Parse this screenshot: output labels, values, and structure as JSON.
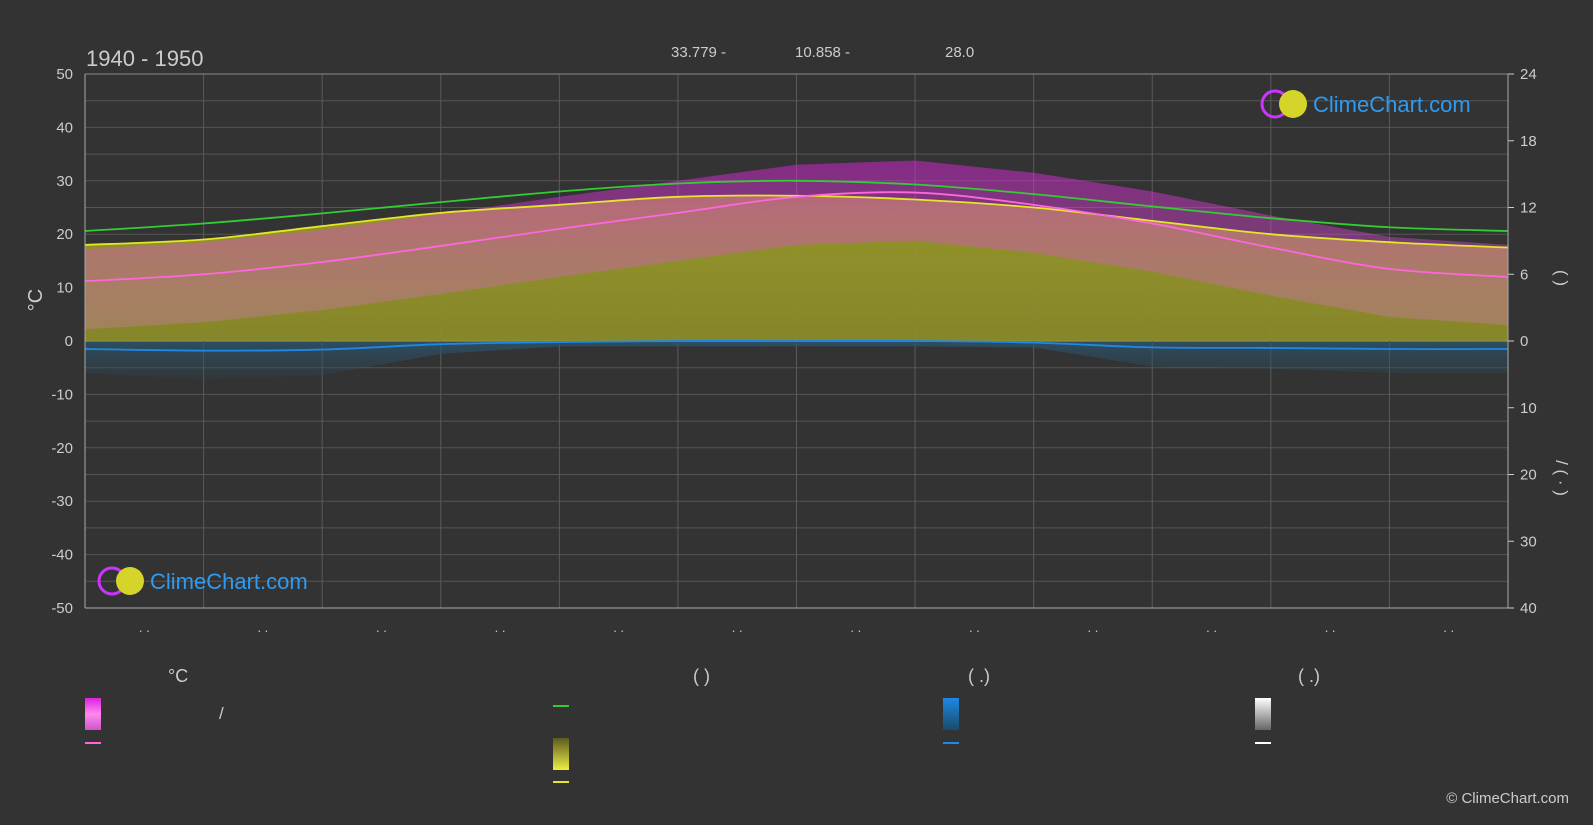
{
  "header": {
    "period": "1940 - 1950",
    "coord_lat": "33.779 -",
    "coord_lon": "10.858 -",
    "elevation": "28.0"
  },
  "brand": {
    "name": "ClimeChart.com",
    "copyright": "© ClimeChart.com"
  },
  "chart_data": {
    "type": "line",
    "x_tick_labels": [
      ". .",
      ". .",
      ". .",
      ". .",
      ". .",
      ". .",
      ". .",
      ". .",
      ". .",
      ". .",
      ". .",
      ". ."
    ],
    "left_axis": {
      "label": "°C",
      "ticks": [
        50,
        40,
        30,
        20,
        10,
        0,
        -10,
        -20,
        -30,
        -40,
        -50
      ],
      "range": [
        -50,
        50
      ]
    },
    "right_axis_top": {
      "label": "(   )",
      "ticks": [
        24,
        18,
        12,
        6,
        0
      ],
      "range": [
        0,
        24
      ]
    },
    "right_axis_bottom": {
      "label": "/ (  ·  )",
      "ticks": [
        0,
        10,
        20,
        30,
        40
      ],
      "range": [
        0,
        40
      ]
    },
    "grid": true,
    "x": [
      0,
      1,
      2,
      3,
      4,
      5,
      6,
      7,
      8,
      9,
      10,
      11,
      12
    ],
    "series": [
      {
        "key": "daylight",
        "color": "#33cc33",
        "values": [
          20.6,
          22.0,
          23.9,
          26.0,
          28.0,
          29.5,
          30.0,
          29.3,
          27.5,
          25.2,
          23.0,
          21.3,
          20.6
        ]
      },
      {
        "key": "sunshine",
        "color": "#e5e52b",
        "values": [
          18.0,
          19.0,
          21.5,
          24.0,
          25.5,
          27.0,
          27.2,
          26.5,
          25.0,
          22.5,
          20.0,
          18.5,
          17.5
        ]
      },
      {
        "key": "mean_temp",
        "color": "#ff66dd",
        "values": [
          11.2,
          12.5,
          14.8,
          17.8,
          21.0,
          24.0,
          27.0,
          27.8,
          25.5,
          22.0,
          17.5,
          13.5,
          12.0
        ]
      },
      {
        "key": "rain",
        "color": "#1e88e5",
        "values": [
          -1.5,
          -1.8,
          -1.6,
          -0.6,
          -0.2,
          0,
          0,
          0,
          -0.3,
          -1.2,
          -1.3,
          -1.5,
          -1.5
        ]
      }
    ]
  },
  "legend": {
    "col1": {
      "head": "°C",
      "items": [
        {
          "swatch": "gradient-magenta",
          "text": "/"
        },
        {
          "swatch": "line-pink",
          "text": ""
        }
      ]
    },
    "col2": {
      "head": "(          )",
      "items": [
        {
          "swatch": "line-green",
          "text": ""
        },
        {
          "swatch": "gradient-yellow",
          "text": ""
        },
        {
          "swatch": "line-yellow",
          "text": ""
        }
      ]
    },
    "col3": {
      "head": "(    .)",
      "items": [
        {
          "swatch": "gradient-blue",
          "text": ""
        },
        {
          "swatch": "line-blue",
          "text": ""
        }
      ]
    },
    "col4": {
      "head": "(    .)",
      "items": [
        {
          "swatch": "gradient-white",
          "text": ""
        },
        {
          "swatch": "line-white",
          "text": ""
        }
      ]
    }
  }
}
